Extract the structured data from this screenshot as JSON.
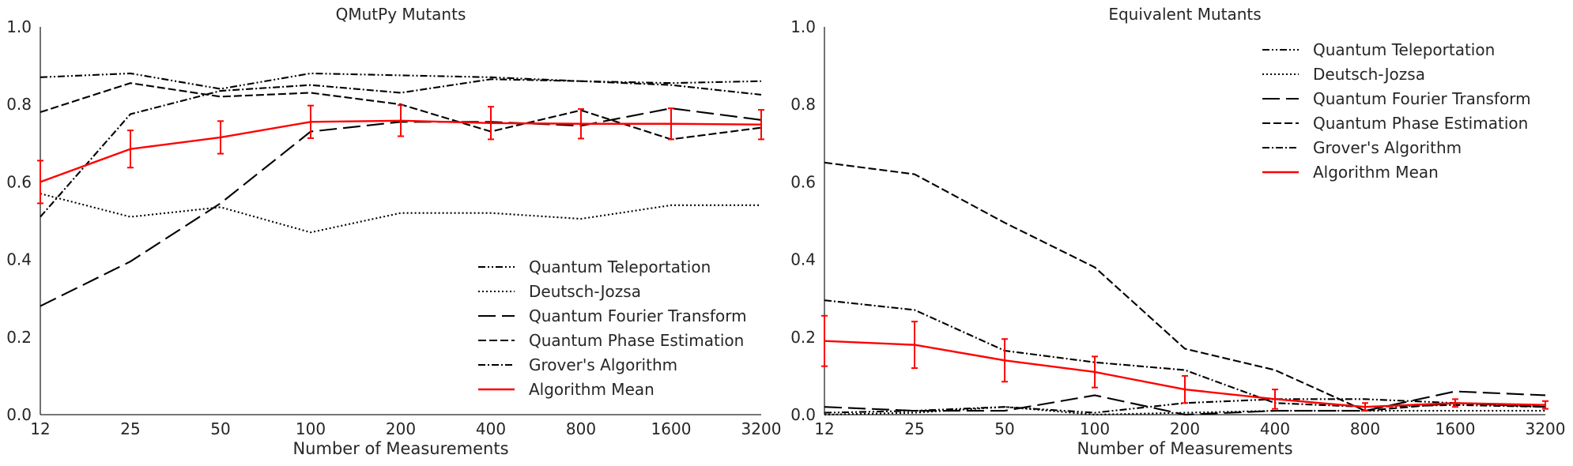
{
  "chart_data": [
    {
      "type": "line",
      "title": "QMutPy Mutants",
      "xlabel": "Number of Measurements",
      "ylabel": "",
      "categories": [
        "12",
        "25",
        "50",
        "100",
        "200",
        "400",
        "800",
        "1600",
        "3200"
      ],
      "ylim": [
        0,
        1.0
      ],
      "yticks": [
        "0.0",
        "0.2",
        "0.4",
        "0.6",
        "0.8",
        "1.0"
      ],
      "legend_position": "lower-right",
      "series": [
        {
          "name": "Quantum Teleportation",
          "style": "dashdotdot",
          "color": "#000000",
          "values": [
            0.87,
            0.88,
            0.84,
            0.88,
            0.875,
            0.87,
            0.86,
            0.855,
            0.86
          ]
        },
        {
          "name": "Deutsch-Jozsa",
          "style": "dotted",
          "color": "#000000",
          "values": [
            0.57,
            0.51,
            0.535,
            0.47,
            0.52,
            0.52,
            0.505,
            0.54,
            0.54
          ]
        },
        {
          "name": "Quantum Fourier Transform",
          "style": "longdash",
          "color": "#000000",
          "values": [
            0.28,
            0.395,
            0.545,
            0.73,
            0.755,
            0.755,
            0.745,
            0.79,
            0.76
          ]
        },
        {
          "name": "Quantum Phase Estimation",
          "style": "dashed",
          "color": "#000000",
          "values": [
            0.78,
            0.855,
            0.82,
            0.83,
            0.8,
            0.73,
            0.785,
            0.71,
            0.74
          ]
        },
        {
          "name": "Grover's Algorithm",
          "style": "dashdot",
          "color": "#000000",
          "values": [
            0.51,
            0.775,
            0.835,
            0.85,
            0.83,
            0.865,
            0.86,
            0.85,
            0.825
          ]
        },
        {
          "name": "Algorithm Mean",
          "style": "solid",
          "color": "#ff0000",
          "values": [
            0.6,
            0.685,
            0.715,
            0.755,
            0.758,
            0.752,
            0.75,
            0.75,
            0.748
          ],
          "error": [
            0.055,
            0.048,
            0.042,
            0.042,
            0.04,
            0.042,
            0.038,
            0.04,
            0.038
          ]
        }
      ]
    },
    {
      "type": "line",
      "title": "Equivalent Mutants",
      "xlabel": "Number of Measurements",
      "ylabel": "",
      "categories": [
        "12",
        "25",
        "50",
        "100",
        "200",
        "400",
        "800",
        "1600",
        "3200"
      ],
      "ylim": [
        0,
        1.0
      ],
      "yticks": [
        "0.0",
        "0.2",
        "0.4",
        "0.6",
        "0.8",
        "1.0"
      ],
      "legend_position": "upper-right",
      "series": [
        {
          "name": "Quantum Teleportation",
          "style": "dashdotdot",
          "color": "#000000",
          "values": [
            0.005,
            0.01,
            0.02,
            0.005,
            0.03,
            0.04,
            0.04,
            0.03,
            0.02
          ]
        },
        {
          "name": "Deutsch-Jozsa",
          "style": "dotted",
          "color": "#000000",
          "values": [
            0.0,
            0.005,
            0.02,
            0.0,
            0.005,
            0.01,
            0.01,
            0.01,
            0.01
          ]
        },
        {
          "name": "Quantum Fourier Transform",
          "style": "longdash",
          "color": "#000000",
          "values": [
            0.02,
            0.01,
            0.01,
            0.05,
            0.0,
            0.01,
            0.01,
            0.06,
            0.05
          ]
        },
        {
          "name": "Quantum Phase Estimation",
          "style": "dashed",
          "color": "#000000",
          "values": [
            0.65,
            0.62,
            0.495,
            0.38,
            0.17,
            0.115,
            0.01,
            0.03,
            0.02
          ]
        },
        {
          "name": "Grover's Algorithm",
          "style": "dashdot",
          "color": "#000000",
          "values": [
            0.295,
            0.27,
            0.165,
            0.135,
            0.115,
            0.03,
            0.02,
            0.025,
            0.02
          ]
        },
        {
          "name": "Algorithm Mean",
          "style": "solid",
          "color": "#ff0000",
          "values": [
            0.19,
            0.18,
            0.14,
            0.11,
            0.065,
            0.04,
            0.02,
            0.03,
            0.025
          ],
          "error": [
            0.065,
            0.06,
            0.055,
            0.04,
            0.035,
            0.025,
            0.01,
            0.01,
            0.01
          ]
        }
      ]
    }
  ]
}
